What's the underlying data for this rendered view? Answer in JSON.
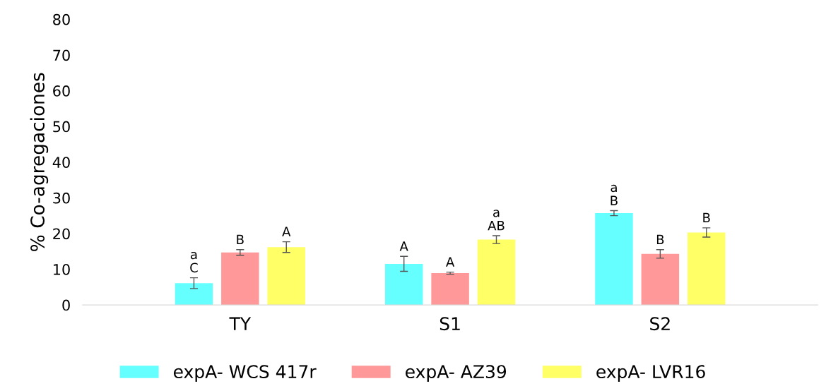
{
  "chart_data": {
    "type": "bar",
    "ylabel": "% Co-agregaciones",
    "categories": [
      "TY",
      "S1",
      "S2"
    ],
    "series": [
      {
        "name": "expA- WCS 417r",
        "color": "#66ffff",
        "values": [
          6.1,
          11.5,
          25.7
        ],
        "errors": [
          1.5,
          2.1,
          0.7
        ],
        "value_labels": [
          "a\nC",
          "A",
          "a\nB"
        ]
      },
      {
        "name": "expA- AZ39",
        "color": "#ff9999",
        "values": [
          14.7,
          8.9,
          14.3
        ],
        "errors": [
          0.8,
          0.3,
          1.2
        ],
        "value_labels": [
          "B",
          "A",
          "B"
        ]
      },
      {
        "name": "expA- LVR16",
        "color": "#ffff66",
        "values": [
          16.2,
          18.3,
          20.3
        ],
        "errors": [
          1.5,
          1.1,
          1.3
        ],
        "value_labels": [
          "A",
          "a\nAB",
          "B"
        ]
      }
    ],
    "ylim": [
      0,
      80
    ],
    "yticks": [
      0,
      10,
      20,
      30,
      40,
      50,
      60,
      70,
      80
    ],
    "grid": false,
    "legend": "bottom"
  }
}
